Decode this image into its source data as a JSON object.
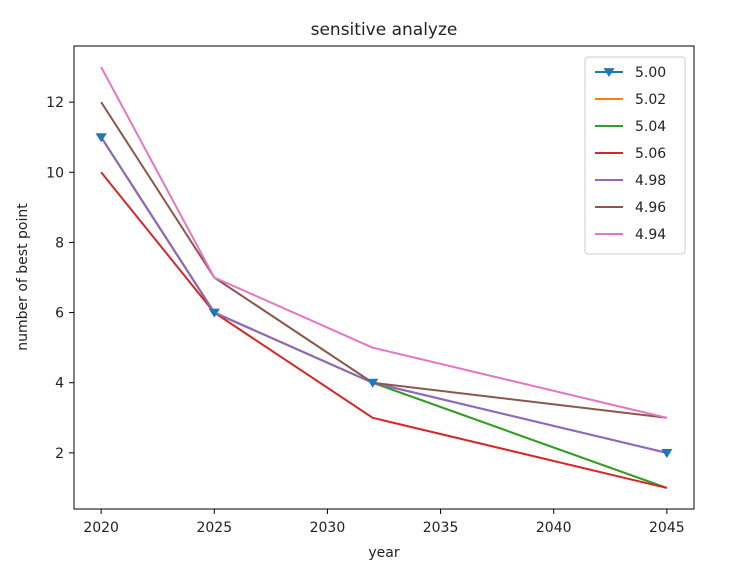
{
  "chart_data": {
    "type": "line",
    "title": "sensitive analyze",
    "xlabel": "year",
    "ylabel": "number of best point",
    "x": [
      2020,
      2025,
      2032,
      2045
    ],
    "xticks": [
      2020,
      2025,
      2030,
      2035,
      2040,
      2045
    ],
    "yticks": [
      2,
      4,
      6,
      8,
      10,
      12
    ],
    "xlim": [
      2018.8,
      2046.2
    ],
    "ylim": [
      0.4,
      13.6
    ],
    "grid": false,
    "legend_position": "top-right",
    "series": [
      {
        "name": "5.00",
        "values": [
          11,
          6,
          4,
          2
        ],
        "color": "#1f77b4",
        "marker": "triangle-down"
      },
      {
        "name": "5.02",
        "values": [
          11,
          6,
          4,
          1
        ],
        "color": "#ff7f0e"
      },
      {
        "name": "5.04",
        "values": [
          11,
          6,
          4,
          1
        ],
        "color": "#2ca02c"
      },
      {
        "name": "5.06",
        "values": [
          10,
          6,
          3,
          1
        ],
        "color": "#d62728"
      },
      {
        "name": "4.98",
        "values": [
          11,
          6,
          4,
          2
        ],
        "color": "#9467bd"
      },
      {
        "name": "4.96",
        "values": [
          12,
          7,
          4,
          3
        ],
        "color": "#8c564b"
      },
      {
        "name": "4.94",
        "values": [
          13,
          7,
          5,
          3
        ],
        "color": "#e377c2"
      }
    ]
  }
}
